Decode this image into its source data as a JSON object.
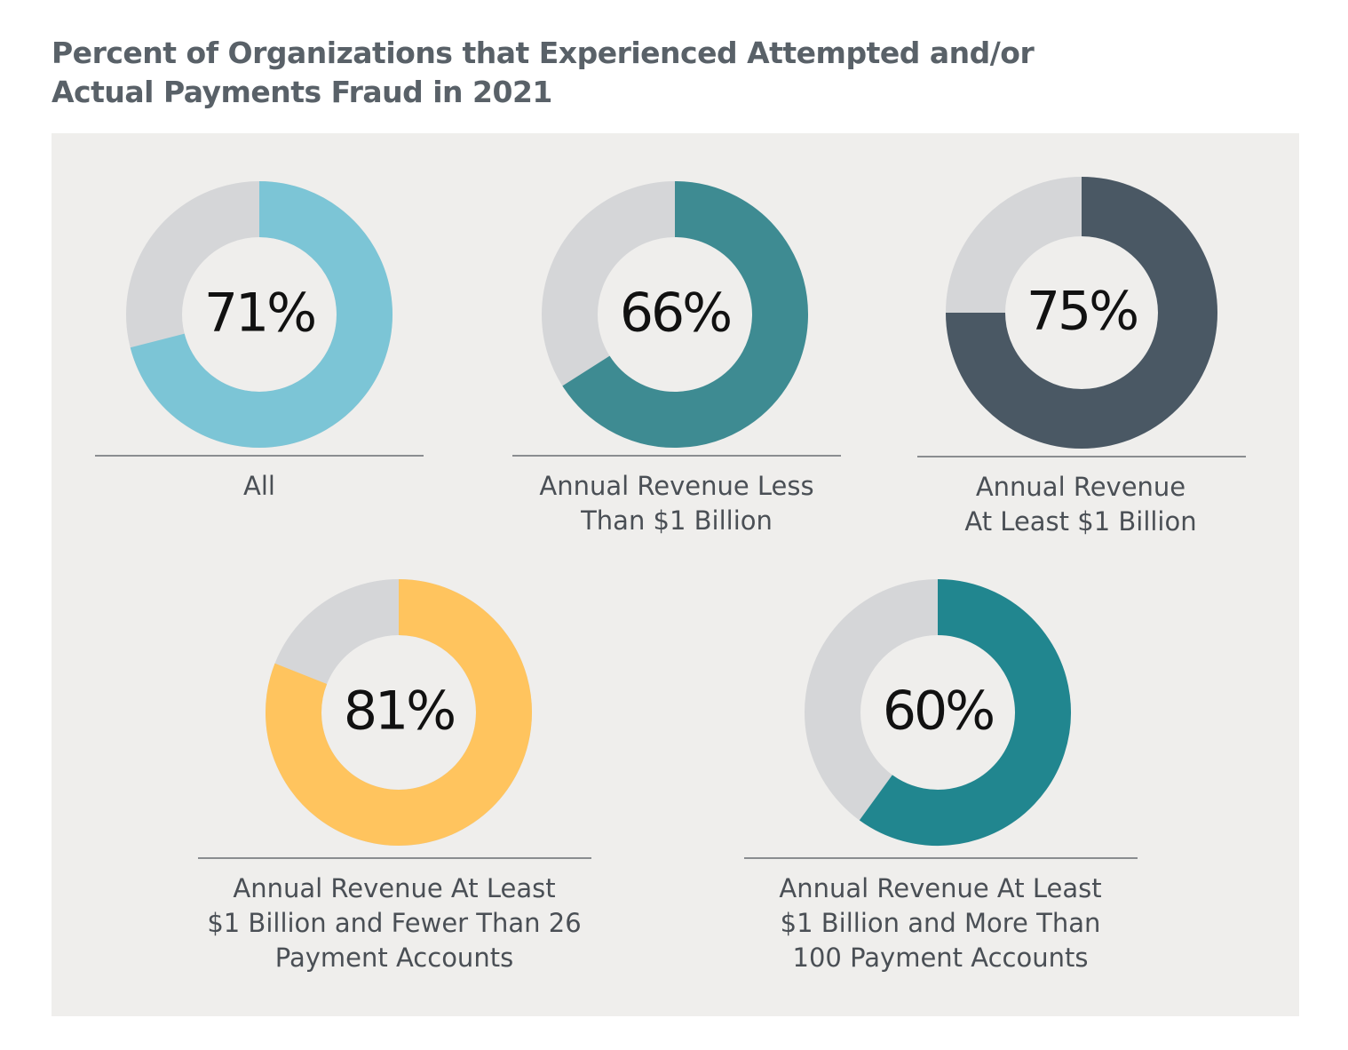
{
  "title": {
    "line1": "Percent of Organizations that Experienced Attempted and/or",
    "line2": "Actual Payments Fraud in 2021"
  },
  "colors": {
    "panel_background": "#efeeec",
    "remainder": "#d5d6d8",
    "divider": "#8a8d90"
  },
  "chart_data": {
    "type": "pie",
    "variant": "donut",
    "title": "Percent of Organizations that Experienced Attempted and/or Actual Payments Fraud in 2021",
    "categories": [
      "All",
      "Annual Revenue Less Than $1 Billion",
      "Annual Revenue At Least $1 Billion",
      "Annual Revenue At Least $1 Billion and Fewer Than 26 Payment Accounts",
      "Annual Revenue At Least $1 Billion and More Than 100 Payment Accounts"
    ],
    "values": [
      71,
      66,
      75,
      81,
      60
    ],
    "value_labels": [
      "71%",
      "66%",
      "75%",
      "81%",
      "60%"
    ],
    "label_lines": [
      [
        "All"
      ],
      [
        "Annual Revenue Less",
        "Than $1 Billion"
      ],
      [
        "Annual Revenue",
        "At Least $1 Billion"
      ],
      [
        "Annual Revenue At Least",
        "$1 Billion and Fewer Than 26",
        "Payment Accounts"
      ],
      [
        "Annual Revenue At Least",
        "$1 Billion and More Than",
        "100 Payment Accounts"
      ]
    ],
    "series_colors": [
      "#7cc5d6",
      "#3e8b92",
      "#4a5864",
      "#ffc45e",
      "#21868f"
    ],
    "max": 100
  }
}
